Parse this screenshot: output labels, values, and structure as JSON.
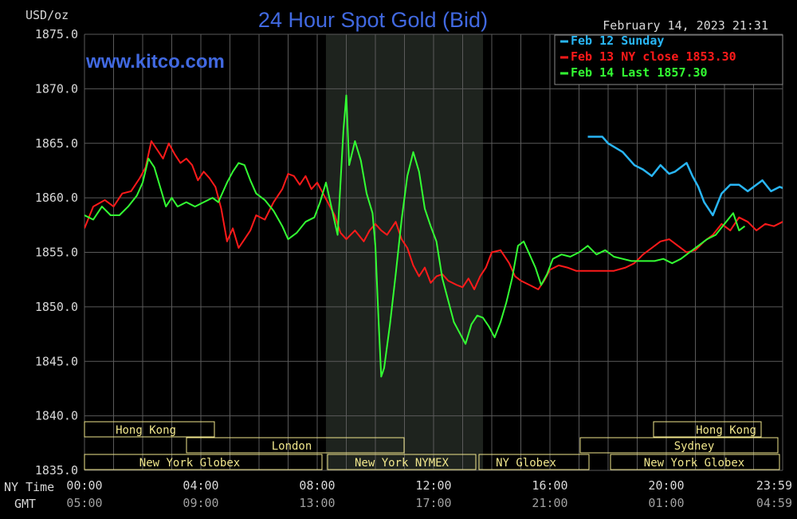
{
  "header": {
    "unit": "USD/oz",
    "title": "24 Hour Spot Gold (Bid)",
    "timestamp": "February 14, 2023 21:31",
    "watermark": "www.kitco.com"
  },
  "colors": {
    "background": "#000000",
    "title": "#4169e1",
    "watermark": "#4169e1",
    "axis_text": "#d8d8d8",
    "gmt_text": "#a0a0a0",
    "grid": "#5a5a5a",
    "session_shade": "#1e231e",
    "market_box": "#f0e68c"
  },
  "legend": {
    "placement": "top-right",
    "items": [
      {
        "label": "Feb 12 Sunday",
        "color": "#29b6f6"
      },
      {
        "label": "Feb 13 NY close 1853.30",
        "color": "#ff1a1a"
      },
      {
        "label": "Feb 14 Last 1857.30",
        "color": "#33ff33"
      }
    ]
  },
  "row_labels": {
    "ny": "NY Time",
    "gmt": "GMT"
  },
  "markets": {
    "row1": [
      "Hong Kong",
      "Hong Kong"
    ],
    "row2": [
      "London",
      "Sydney"
    ],
    "row3": [
      "New York Globex",
      "New York NYMEX",
      "NY Globex",
      "New York Globex"
    ]
  },
  "chart_data": {
    "type": "line",
    "title": "24 Hour Spot Gold (Bid)",
    "ylabel": "USD/oz",
    "ylim": [
      1835,
      1875
    ],
    "xlim_hours": [
      0,
      24
    ],
    "yticks": [
      "1875.0",
      "1870.0",
      "1865.0",
      "1860.0",
      "1855.0",
      "1850.0",
      "1845.0",
      "1840.0",
      "1835.0"
    ],
    "xticks": [
      {
        "hour": 0,
        "ny": "00:00",
        "gmt": "05:00"
      },
      {
        "hour": 4,
        "ny": "04:00",
        "gmt": "09:00"
      },
      {
        "hour": 8,
        "ny": "08:00",
        "gmt": "13:00"
      },
      {
        "hour": 12,
        "ny": "12:00",
        "gmt": "17:00"
      },
      {
        "hour": 16,
        "ny": "16:00",
        "gmt": "21:00"
      },
      {
        "hour": 20,
        "ny": "20:00",
        "gmt": "01:00"
      },
      {
        "hour": 24,
        "ny": "23:59",
        "gmt": "04:59"
      }
    ],
    "grid": true,
    "shaded_session_hours": [
      8.3,
      13.7
    ],
    "series": [
      {
        "name": "Feb 12 Sunday",
        "color": "#29b6f6",
        "points": [
          [
            17.3,
            1865.6
          ],
          [
            17.8,
            1865.6
          ],
          [
            18.0,
            1865.0
          ],
          [
            18.5,
            1864.2
          ],
          [
            18.9,
            1863.0
          ],
          [
            19.2,
            1862.6
          ],
          [
            19.5,
            1862.0
          ],
          [
            19.8,
            1863.0
          ],
          [
            20.1,
            1862.2
          ],
          [
            20.3,
            1862.4
          ],
          [
            20.7,
            1863.2
          ],
          [
            20.9,
            1862.0
          ],
          [
            21.1,
            1861.0
          ],
          [
            21.3,
            1859.6
          ],
          [
            21.6,
            1858.4
          ],
          [
            21.9,
            1860.4
          ],
          [
            22.2,
            1861.2
          ],
          [
            22.5,
            1861.2
          ],
          [
            22.8,
            1860.6
          ],
          [
            23.0,
            1861.0
          ],
          [
            23.3,
            1861.6
          ],
          [
            23.6,
            1860.6
          ],
          [
            23.9,
            1861.0
          ],
          [
            24.3,
            1860.6
          ],
          [
            24.6,
            1860.0
          ],
          [
            24.9,
            1859.4
          ],
          [
            25.2,
            1858.8
          ],
          [
            25.5,
            1858.6
          ],
          [
            25.7,
            1858.2
          ]
        ]
      },
      {
        "name": "Feb 13 NY close 1853.30",
        "color": "#ff1a1a",
        "points": [
          [
            0.0,
            1857.2
          ],
          [
            0.3,
            1859.2
          ],
          [
            0.7,
            1859.8
          ],
          [
            1.0,
            1859.2
          ],
          [
            1.3,
            1860.4
          ],
          [
            1.6,
            1860.6
          ],
          [
            1.9,
            1861.8
          ],
          [
            2.1,
            1862.8
          ],
          [
            2.3,
            1865.2
          ],
          [
            2.5,
            1864.4
          ],
          [
            2.7,
            1863.6
          ],
          [
            2.9,
            1865.0
          ],
          [
            3.1,
            1864.0
          ],
          [
            3.3,
            1863.2
          ],
          [
            3.5,
            1863.6
          ],
          [
            3.7,
            1863.0
          ],
          [
            3.9,
            1861.6
          ],
          [
            4.1,
            1862.4
          ],
          [
            4.3,
            1861.8
          ],
          [
            4.5,
            1861.0
          ],
          [
            4.7,
            1859.0
          ],
          [
            4.9,
            1856.0
          ],
          [
            5.1,
            1857.2
          ],
          [
            5.3,
            1855.4
          ],
          [
            5.5,
            1856.2
          ],
          [
            5.7,
            1857.0
          ],
          [
            5.9,
            1858.4
          ],
          [
            6.2,
            1858.0
          ],
          [
            6.5,
            1859.6
          ],
          [
            6.8,
            1860.8
          ],
          [
            7.0,
            1862.2
          ],
          [
            7.2,
            1862.0
          ],
          [
            7.4,
            1861.2
          ],
          [
            7.6,
            1862.0
          ],
          [
            7.8,
            1860.8
          ],
          [
            8.0,
            1861.4
          ],
          [
            8.2,
            1860.4
          ],
          [
            8.4,
            1859.4
          ],
          [
            8.6,
            1858.4
          ],
          [
            8.8,
            1856.8
          ],
          [
            9.0,
            1856.2
          ],
          [
            9.3,
            1857.0
          ],
          [
            9.6,
            1856.0
          ],
          [
            9.8,
            1857.0
          ],
          [
            10.0,
            1857.6
          ],
          [
            10.2,
            1857.0
          ],
          [
            10.4,
            1856.6
          ],
          [
            10.7,
            1857.8
          ],
          [
            10.9,
            1856.2
          ],
          [
            11.1,
            1855.4
          ],
          [
            11.3,
            1853.8
          ],
          [
            11.5,
            1852.8
          ],
          [
            11.7,
            1853.6
          ],
          [
            11.9,
            1852.2
          ],
          [
            12.1,
            1852.8
          ],
          [
            12.3,
            1853.0
          ],
          [
            12.5,
            1852.4
          ],
          [
            12.8,
            1852.0
          ],
          [
            13.0,
            1851.8
          ],
          [
            13.2,
            1852.6
          ],
          [
            13.4,
            1851.6
          ],
          [
            13.6,
            1852.8
          ],
          [
            13.8,
            1853.6
          ],
          [
            14.0,
            1855.0
          ],
          [
            14.3,
            1855.2
          ],
          [
            14.6,
            1854.0
          ],
          [
            14.8,
            1852.8
          ],
          [
            15.0,
            1852.4
          ],
          [
            15.3,
            1852.0
          ],
          [
            15.6,
            1851.6
          ],
          [
            15.8,
            1852.4
          ],
          [
            16.0,
            1853.4
          ],
          [
            16.3,
            1853.8
          ],
          [
            16.6,
            1853.6
          ],
          [
            16.9,
            1853.3
          ],
          [
            17.5,
            1853.3
          ],
          [
            18.2,
            1853.3
          ],
          [
            18.6,
            1853.6
          ],
          [
            18.9,
            1854.0
          ],
          [
            19.2,
            1854.8
          ],
          [
            19.5,
            1855.4
          ],
          [
            19.8,
            1856.0
          ],
          [
            20.1,
            1856.2
          ],
          [
            20.4,
            1855.6
          ],
          [
            20.7,
            1855.0
          ],
          [
            21.0,
            1855.2
          ],
          [
            21.3,
            1856.0
          ],
          [
            21.6,
            1856.6
          ],
          [
            21.9,
            1857.6
          ],
          [
            22.2,
            1857.0
          ],
          [
            22.5,
            1858.2
          ],
          [
            22.8,
            1857.8
          ],
          [
            23.1,
            1857.0
          ],
          [
            23.4,
            1857.6
          ],
          [
            23.7,
            1857.4
          ],
          [
            24.0,
            1857.8
          ],
          [
            24.3,
            1858.0
          ],
          [
            24.6,
            1858.0
          ],
          [
            24.9,
            1858.4
          ],
          [
            25.2,
            1858.0
          ],
          [
            25.5,
            1858.4
          ],
          [
            25.7,
            1858.6
          ]
        ]
      },
      {
        "name": "Feb 14 Last 1857.30",
        "color": "#33ff33",
        "points": [
          [
            0.0,
            1858.4
          ],
          [
            0.3,
            1858.0
          ],
          [
            0.6,
            1859.2
          ],
          [
            0.9,
            1858.4
          ],
          [
            1.2,
            1858.4
          ],
          [
            1.5,
            1859.2
          ],
          [
            1.8,
            1860.2
          ],
          [
            2.0,
            1861.4
          ],
          [
            2.2,
            1863.6
          ],
          [
            2.4,
            1862.8
          ],
          [
            2.6,
            1861.0
          ],
          [
            2.8,
            1859.2
          ],
          [
            3.0,
            1860.0
          ],
          [
            3.2,
            1859.2
          ],
          [
            3.5,
            1859.6
          ],
          [
            3.8,
            1859.2
          ],
          [
            4.1,
            1859.6
          ],
          [
            4.4,
            1860.0
          ],
          [
            4.6,
            1859.6
          ],
          [
            4.9,
            1861.4
          ],
          [
            5.1,
            1862.4
          ],
          [
            5.3,
            1863.2
          ],
          [
            5.5,
            1863.0
          ],
          [
            5.7,
            1861.6
          ],
          [
            5.9,
            1860.4
          ],
          [
            6.2,
            1859.8
          ],
          [
            6.5,
            1858.8
          ],
          [
            6.8,
            1857.4
          ],
          [
            7.0,
            1856.2
          ],
          [
            7.3,
            1856.8
          ],
          [
            7.6,
            1857.8
          ],
          [
            7.9,
            1858.2
          ],
          [
            8.1,
            1859.6
          ],
          [
            8.3,
            1861.4
          ],
          [
            8.5,
            1859.0
          ],
          [
            8.7,
            1856.6
          ],
          [
            8.9,
            1866.2
          ],
          [
            9.0,
            1869.4
          ],
          [
            9.1,
            1863.0
          ],
          [
            9.3,
            1865.2
          ],
          [
            9.5,
            1863.4
          ],
          [
            9.7,
            1860.4
          ],
          [
            9.9,
            1858.6
          ],
          [
            10.0,
            1855.6
          ],
          [
            10.1,
            1849.4
          ],
          [
            10.2,
            1843.6
          ],
          [
            10.3,
            1844.4
          ],
          [
            10.5,
            1848.4
          ],
          [
            10.7,
            1853.0
          ],
          [
            10.9,
            1858.0
          ],
          [
            11.1,
            1862.0
          ],
          [
            11.3,
            1864.2
          ],
          [
            11.5,
            1862.4
          ],
          [
            11.7,
            1859.0
          ],
          [
            11.9,
            1857.4
          ],
          [
            12.1,
            1856.0
          ],
          [
            12.3,
            1852.6
          ],
          [
            12.5,
            1850.6
          ],
          [
            12.7,
            1848.6
          ],
          [
            12.9,
            1847.6
          ],
          [
            13.1,
            1846.6
          ],
          [
            13.3,
            1848.4
          ],
          [
            13.5,
            1849.2
          ],
          [
            13.7,
            1849.0
          ],
          [
            13.9,
            1848.2
          ],
          [
            14.1,
            1847.2
          ],
          [
            14.3,
            1848.6
          ],
          [
            14.5,
            1850.4
          ],
          [
            14.7,
            1852.6
          ],
          [
            14.9,
            1855.6
          ],
          [
            15.1,
            1856.0
          ],
          [
            15.3,
            1854.8
          ],
          [
            15.5,
            1853.6
          ],
          [
            15.7,
            1852.0
          ],
          [
            15.9,
            1853.0
          ],
          [
            16.1,
            1854.4
          ],
          [
            16.4,
            1854.8
          ],
          [
            16.7,
            1854.6
          ],
          [
            17.0,
            1855.0
          ],
          [
            17.3,
            1855.6
          ],
          [
            17.6,
            1854.8
          ],
          [
            17.9,
            1855.2
          ],
          [
            18.2,
            1854.6
          ],
          [
            18.5,
            1854.4
          ],
          [
            18.8,
            1854.2
          ],
          [
            19.2,
            1854.2
          ],
          [
            19.6,
            1854.2
          ],
          [
            19.9,
            1854.4
          ],
          [
            20.2,
            1854.0
          ],
          [
            20.5,
            1854.4
          ],
          [
            20.8,
            1855.0
          ],
          [
            21.1,
            1855.6
          ],
          [
            21.4,
            1856.2
          ],
          [
            21.7,
            1856.6
          ],
          [
            22.0,
            1857.6
          ],
          [
            22.3,
            1858.6
          ],
          [
            22.5,
            1857.0
          ],
          [
            22.7,
            1857.4
          ]
        ]
      }
    ]
  }
}
